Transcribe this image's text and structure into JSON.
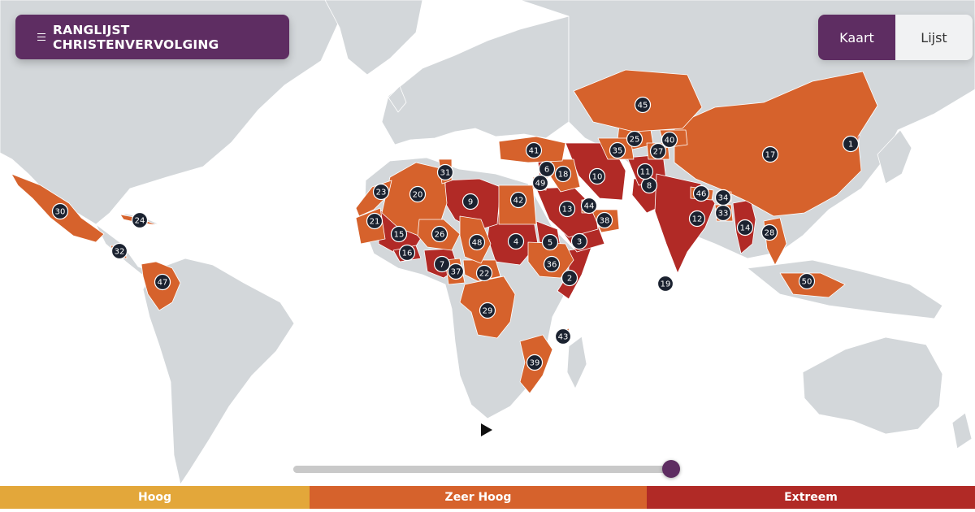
{
  "menu": {
    "label": "RANGLIJST CHRISTENVERVOLGING",
    "icon": "hamburger-icon"
  },
  "view_toggle": {
    "options": [
      "Kaart",
      "Lijst"
    ],
    "selected": "Kaart"
  },
  "play": {
    "icon": "play-icon"
  },
  "timeline": {
    "value": 1.0
  },
  "legend": [
    {
      "label": "Hoog",
      "color": "#e3a73a"
    },
    {
      "label": "Zeer Hoog",
      "color": "#d6622c"
    },
    {
      "label": "Extreem",
      "color": "#b12a26"
    }
  ],
  "colors": {
    "ocean": "#ffffff",
    "land": "#d3d7da",
    "marker": "#1b2230",
    "brand": "#5e2d62"
  },
  "markers": [
    {
      "rank": "1",
      "country": "Noord-Korea",
      "level": "Extreem"
    },
    {
      "rank": "2",
      "country": "Somalië",
      "level": "Extreem"
    },
    {
      "rank": "3",
      "country": "Jemen",
      "level": "Extreem"
    },
    {
      "rank": "4",
      "country": "Soedan",
      "level": "Extreem"
    },
    {
      "rank": "5",
      "country": "Eritrea",
      "level": "Extreem"
    },
    {
      "rank": "6",
      "country": "Syrië",
      "level": "Extreem"
    },
    {
      "rank": "7",
      "country": "Nigeria",
      "level": "Extreem"
    },
    {
      "rank": "8",
      "country": "Pakistan",
      "level": "Extreem"
    },
    {
      "rank": "9",
      "country": "Libië",
      "level": "Extreem"
    },
    {
      "rank": "10",
      "country": "Iran",
      "level": "Extreem"
    },
    {
      "rank": "11",
      "country": "Afghanistan",
      "level": "Extreem"
    },
    {
      "rank": "12",
      "country": "India",
      "level": "Extreem"
    },
    {
      "rank": "13",
      "country": "Saoedi-Arabië",
      "level": "Extreem"
    },
    {
      "rank": "14",
      "country": "Myanmar",
      "level": "Extreem"
    },
    {
      "rank": "15",
      "country": "Mali",
      "level": "Extreem"
    },
    {
      "rank": "16",
      "country": "Burkina Faso",
      "level": "Extreem"
    },
    {
      "rank": "17",
      "country": "China",
      "level": "Zeer Hoog"
    },
    {
      "rank": "18",
      "country": "Irak",
      "level": "Zeer Hoog"
    },
    {
      "rank": "19",
      "country": "Maldiven",
      "level": "Zeer Hoog"
    },
    {
      "rank": "20",
      "country": "Algerije",
      "level": "Zeer Hoog"
    },
    {
      "rank": "21",
      "country": "Mauritanië",
      "level": "Zeer Hoog"
    },
    {
      "rank": "22",
      "country": "Centraal-Afrikaanse Republiek",
      "level": "Zeer Hoog"
    },
    {
      "rank": "23",
      "country": "Marokko",
      "level": "Zeer Hoog"
    },
    {
      "rank": "24",
      "country": "Cuba",
      "level": "Zeer Hoog"
    },
    {
      "rank": "25",
      "country": "Oezbekistan",
      "level": "Zeer Hoog"
    },
    {
      "rank": "26",
      "country": "Niger",
      "level": "Zeer Hoog"
    },
    {
      "rank": "27",
      "country": "Tadzjikistan",
      "level": "Zeer Hoog"
    },
    {
      "rank": "28",
      "country": "Vietnam",
      "level": "Zeer Hoog"
    },
    {
      "rank": "29",
      "country": "DR Congo",
      "level": "Zeer Hoog"
    },
    {
      "rank": "30",
      "country": "Mexico",
      "level": "Zeer Hoog"
    },
    {
      "rank": "31",
      "country": "Tunesië",
      "level": "Zeer Hoog"
    },
    {
      "rank": "32",
      "country": "Nicaragua",
      "level": "Zeer Hoog"
    },
    {
      "rank": "33",
      "country": "Bangladesh",
      "level": "Zeer Hoog"
    },
    {
      "rank": "34",
      "country": "Bhutan",
      "level": "Zeer Hoog"
    },
    {
      "rank": "35",
      "country": "Turkmenistan",
      "level": "Zeer Hoog"
    },
    {
      "rank": "36",
      "country": "Ethiopië",
      "level": "Zeer Hoog"
    },
    {
      "rank": "37",
      "country": "Kameroen",
      "level": "Zeer Hoog"
    },
    {
      "rank": "38",
      "country": "Oman",
      "level": "Zeer Hoog"
    },
    {
      "rank": "39",
      "country": "Mozambique",
      "level": "Zeer Hoog"
    },
    {
      "rank": "40",
      "country": "Kirgizië",
      "level": "Zeer Hoog"
    },
    {
      "rank": "41",
      "country": "Turkije",
      "level": "Zeer Hoog"
    },
    {
      "rank": "42",
      "country": "Egypte",
      "level": "Zeer Hoog"
    },
    {
      "rank": "43",
      "country": "Comoren",
      "level": "Zeer Hoog"
    },
    {
      "rank": "44",
      "country": "Qatar",
      "level": "Zeer Hoog"
    },
    {
      "rank": "45",
      "country": "Kazachstan",
      "level": "Zeer Hoog"
    },
    {
      "rank": "46",
      "country": "Nepal",
      "level": "Zeer Hoog"
    },
    {
      "rank": "47",
      "country": "Colombia",
      "level": "Zeer Hoog"
    },
    {
      "rank": "48",
      "country": "Tsjaad",
      "level": "Zeer Hoog"
    },
    {
      "rank": "49",
      "country": "Jordanië",
      "level": "Zeer Hoog"
    },
    {
      "rank": "50",
      "country": "Indonesië",
      "level": "Zeer Hoog"
    }
  ]
}
